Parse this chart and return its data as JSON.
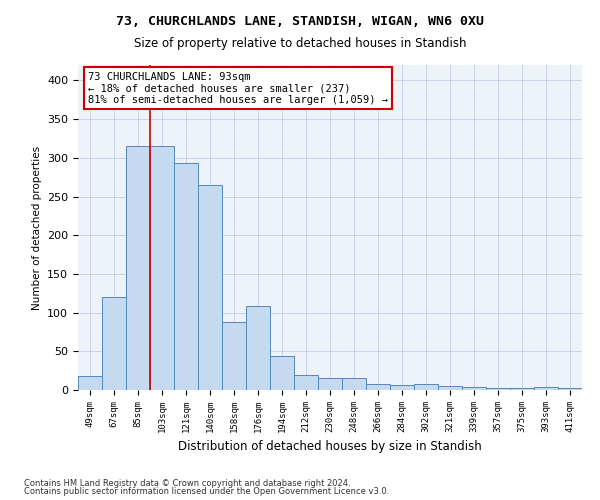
{
  "title1": "73, CHURCHLANDS LANE, STANDISH, WIGAN, WN6 0XU",
  "title2": "Size of property relative to detached houses in Standish",
  "xlabel": "Distribution of detached houses by size in Standish",
  "ylabel": "Number of detached properties",
  "categories": [
    "49sqm",
    "67sqm",
    "85sqm",
    "103sqm",
    "121sqm",
    "140sqm",
    "158sqm",
    "176sqm",
    "194sqm",
    "212sqm",
    "230sqm",
    "248sqm",
    "266sqm",
    "284sqm",
    "302sqm",
    "321sqm",
    "339sqm",
    "357sqm",
    "375sqm",
    "393sqm",
    "411sqm"
  ],
  "values": [
    18,
    120,
    315,
    315,
    293,
    265,
    88,
    109,
    44,
    20,
    15,
    15,
    8,
    7,
    8,
    5,
    4,
    2,
    2,
    4,
    2
  ],
  "bar_color": "#c5d9f0",
  "bar_edge_color": "#5588bb",
  "grid_color": "#c8d4e8",
  "background_color": "#eef2f9",
  "vline_color": "#cc0000",
  "annotation_text": "73 CHURCHLANDS LANE: 93sqm\n← 18% of detached houses are smaller (237)\n81% of semi-detached houses are larger (1,059) →",
  "annotation_box_color": "#ffffff",
  "annotation_box_edge": "#cc0000",
  "footer1": "Contains HM Land Registry data © Crown copyright and database right 2024.",
  "footer2": "Contains public sector information licensed under the Open Government Licence v3.0.",
  "ylim": [
    0,
    420
  ],
  "yticks": [
    0,
    50,
    100,
    150,
    200,
    250,
    300,
    350,
    400
  ]
}
